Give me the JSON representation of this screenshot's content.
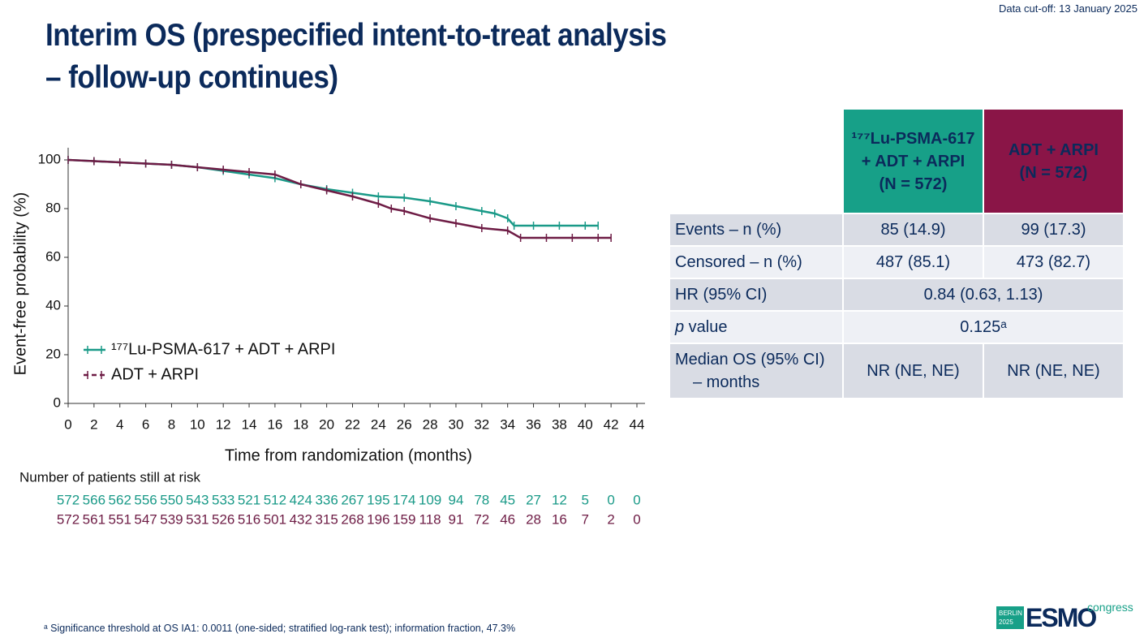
{
  "header": {
    "cutoff": "Data cut-off: 13 January 2025",
    "title": [
      "Interim OS (prespecified intent-to-treat analysis",
      "– follow-up continues)"
    ]
  },
  "chart_data": {
    "type": "line",
    "ylabel": "Event-free probability (%)",
    "xlabel": "Time from randomization (months)",
    "xlim": [
      0,
      44
    ],
    "xticks": [
      0,
      2,
      4,
      6,
      8,
      10,
      12,
      14,
      16,
      18,
      20,
      22,
      24,
      26,
      28,
      30,
      32,
      34,
      36,
      38,
      40,
      42,
      44
    ],
    "ylim": [
      0,
      105
    ],
    "yticks": [
      0,
      20,
      40,
      60,
      80,
      100
    ],
    "series": [
      {
        "name": "¹⁷⁷Lu-PSMA-617 + ADT + ARPI",
        "color": "#1a9a88",
        "x": [
          0,
          2,
          4,
          6,
          8,
          10,
          12,
          14,
          16,
          18,
          20,
          22,
          24,
          26,
          28,
          30,
          32,
          33,
          34,
          34.5,
          36,
          38,
          40,
          41
        ],
        "values": [
          100,
          99.5,
          99,
          98.5,
          98,
          97,
          95.5,
          94,
          92.5,
          90,
          88,
          86.5,
          85,
          84.5,
          83,
          81,
          79,
          78,
          76,
          73,
          73,
          73,
          73,
          73
        ]
      },
      {
        "name": "ADT + ARPI",
        "color": "#6e1c45",
        "x": [
          0,
          2,
          4,
          6,
          8,
          10,
          12,
          14,
          16,
          18,
          20,
          22,
          24,
          25,
          26,
          28,
          30,
          32,
          34,
          35,
          37,
          39,
          41,
          42
        ],
        "values": [
          100,
          99.5,
          99,
          98.5,
          98,
          97,
          96,
          95,
          94,
          90,
          87.5,
          85,
          82,
          80,
          79,
          76,
          74,
          72,
          71,
          68,
          68,
          68,
          68,
          68
        ]
      }
    ],
    "risk_table": {
      "title": "Number of patients still at risk",
      "rows": [
        [
          572,
          566,
          562,
          556,
          550,
          543,
          533,
          521,
          512,
          424,
          336,
          267,
          195,
          174,
          109,
          94,
          78,
          45,
          27,
          12,
          5,
          0,
          0
        ],
        [
          572,
          561,
          551,
          547,
          539,
          531,
          526,
          516,
          501,
          432,
          315,
          268,
          196,
          159,
          118,
          91,
          72,
          46,
          28,
          16,
          7,
          2,
          0
        ]
      ]
    }
  },
  "table": {
    "columns": [
      {
        "lines": [
          "¹⁷⁷Lu-PSMA-617",
          "+ ADT + ARPI",
          "(N = 572)"
        ],
        "color": "#17a088"
      },
      {
        "lines": [
          "ADT + ARPI",
          "(N = 572)"
        ],
        "color": "#8a1547"
      }
    ],
    "rows": [
      {
        "label": [
          "Events – n (%)"
        ],
        "cells": [
          "85 (14.9)",
          "99 (17.3)"
        ]
      },
      {
        "label": [
          "Censored – n (%)"
        ],
        "cells": [
          "487 (85.1)",
          "473 (82.7)"
        ]
      },
      {
        "label": [
          "HR (95% CI)"
        ],
        "cells": [
          "0.84 (0.63, 1.13)"
        ]
      },
      {
        "label": [
          "p",
          " value"
        ],
        "cells": [
          "0.125ᵃ"
        ]
      },
      {
        "label": [
          "Median OS (95% CI)",
          "– months"
        ],
        "cells": [
          "NR (NE, NE)",
          "NR (NE, NE)"
        ]
      }
    ]
  },
  "footnote": "ᵃ Significance threshold at OS IA1: 0.0011 (one-sided; stratified log-rank test); information fraction, 47.3%",
  "logo": {
    "city": "BERLIN",
    "year": "2025",
    "brand": "ESMO",
    "tag": "congress"
  }
}
